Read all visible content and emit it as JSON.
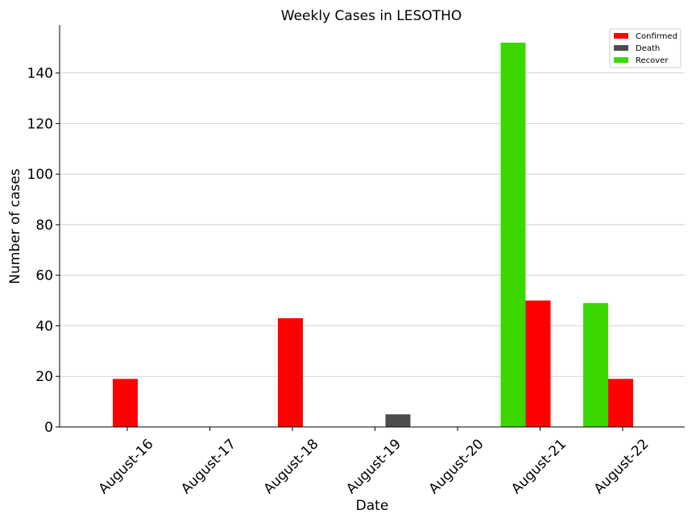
{
  "chart_data": {
    "type": "bar",
    "title": "Weekly Cases in LESOTHO",
    "xlabel": "Date",
    "ylabel": "Number of cases",
    "categories": [
      "August-16",
      "August-17",
      "August-18",
      "August-19",
      "August-20",
      "August-21",
      "August-22"
    ],
    "series": [
      {
        "name": "Confirmed",
        "color": "#ff0000",
        "values": [
          19,
          0,
          43,
          0,
          0,
          50,
          19
        ]
      },
      {
        "name": "Death",
        "color": "#4d4d4d",
        "values": [
          0,
          0,
          0,
          5,
          0,
          0,
          0
        ]
      },
      {
        "name": "Recover",
        "color": "#3dd700",
        "values": [
          0,
          0,
          0,
          0,
          0,
          152,
          49
        ]
      }
    ],
    "yticks": [
      0,
      20,
      40,
      60,
      80,
      100,
      120,
      140
    ],
    "ylim": [
      0,
      159
    ],
    "grid": true,
    "legend_position": "top-right"
  }
}
